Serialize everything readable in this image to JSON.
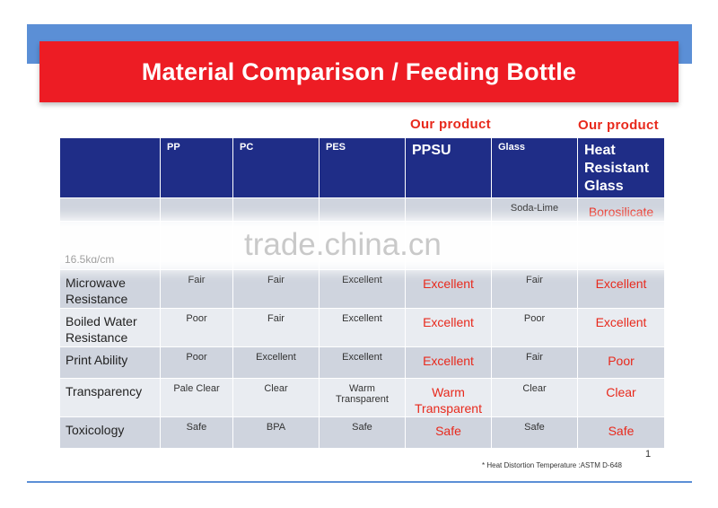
{
  "title": "Material Comparison / Feeding Bottle",
  "our_product_label": "Our product",
  "columns": [
    "",
    "PP",
    "PC",
    "PES",
    "PPSU",
    "Glass",
    "Heat Resistant Glass"
  ],
  "rows": [
    {
      "label": "",
      "values": [
        "",
        "",
        "",
        "",
        "Soda-Lime",
        "Borosilicate"
      ]
    },
    {
      "label": "Microwave Resistance",
      "values": [
        "Fair",
        "Fair",
        "Excellent",
        "Excellent",
        "Fair",
        "Excellent"
      ]
    },
    {
      "label": "Boiled Water Resistance",
      "values": [
        "Poor",
        "Fair",
        "Excellent",
        "Excellent",
        "Poor",
        "Excellent"
      ]
    },
    {
      "label": "Print Ability",
      "values": [
        "Poor",
        "Excellent",
        "Excellent",
        "Excellent",
        "Fair",
        "Poor"
      ]
    },
    {
      "label": "Transparency",
      "values": [
        "Pale Clear",
        "Clear",
        "Warm Transparent",
        "Warm Transparent",
        "Clear",
        "Clear"
      ]
    },
    {
      "label": "Toxicology",
      "values": [
        "Safe",
        "BPA",
        "Safe",
        "Safe",
        "Safe",
        "Safe"
      ]
    }
  ],
  "obscured_row_fragment": "16.5kg/cm",
  "watermark": "trade.china.cn",
  "page_number": "1",
  "footnote": "* Heat Distortion Temperature :ASTM D-648",
  "colors": {
    "title_bg": "#ed1c24",
    "header_bg": "#1f2d87",
    "accent_red": "#e8291c",
    "band_blue": "#5b8fd6"
  }
}
